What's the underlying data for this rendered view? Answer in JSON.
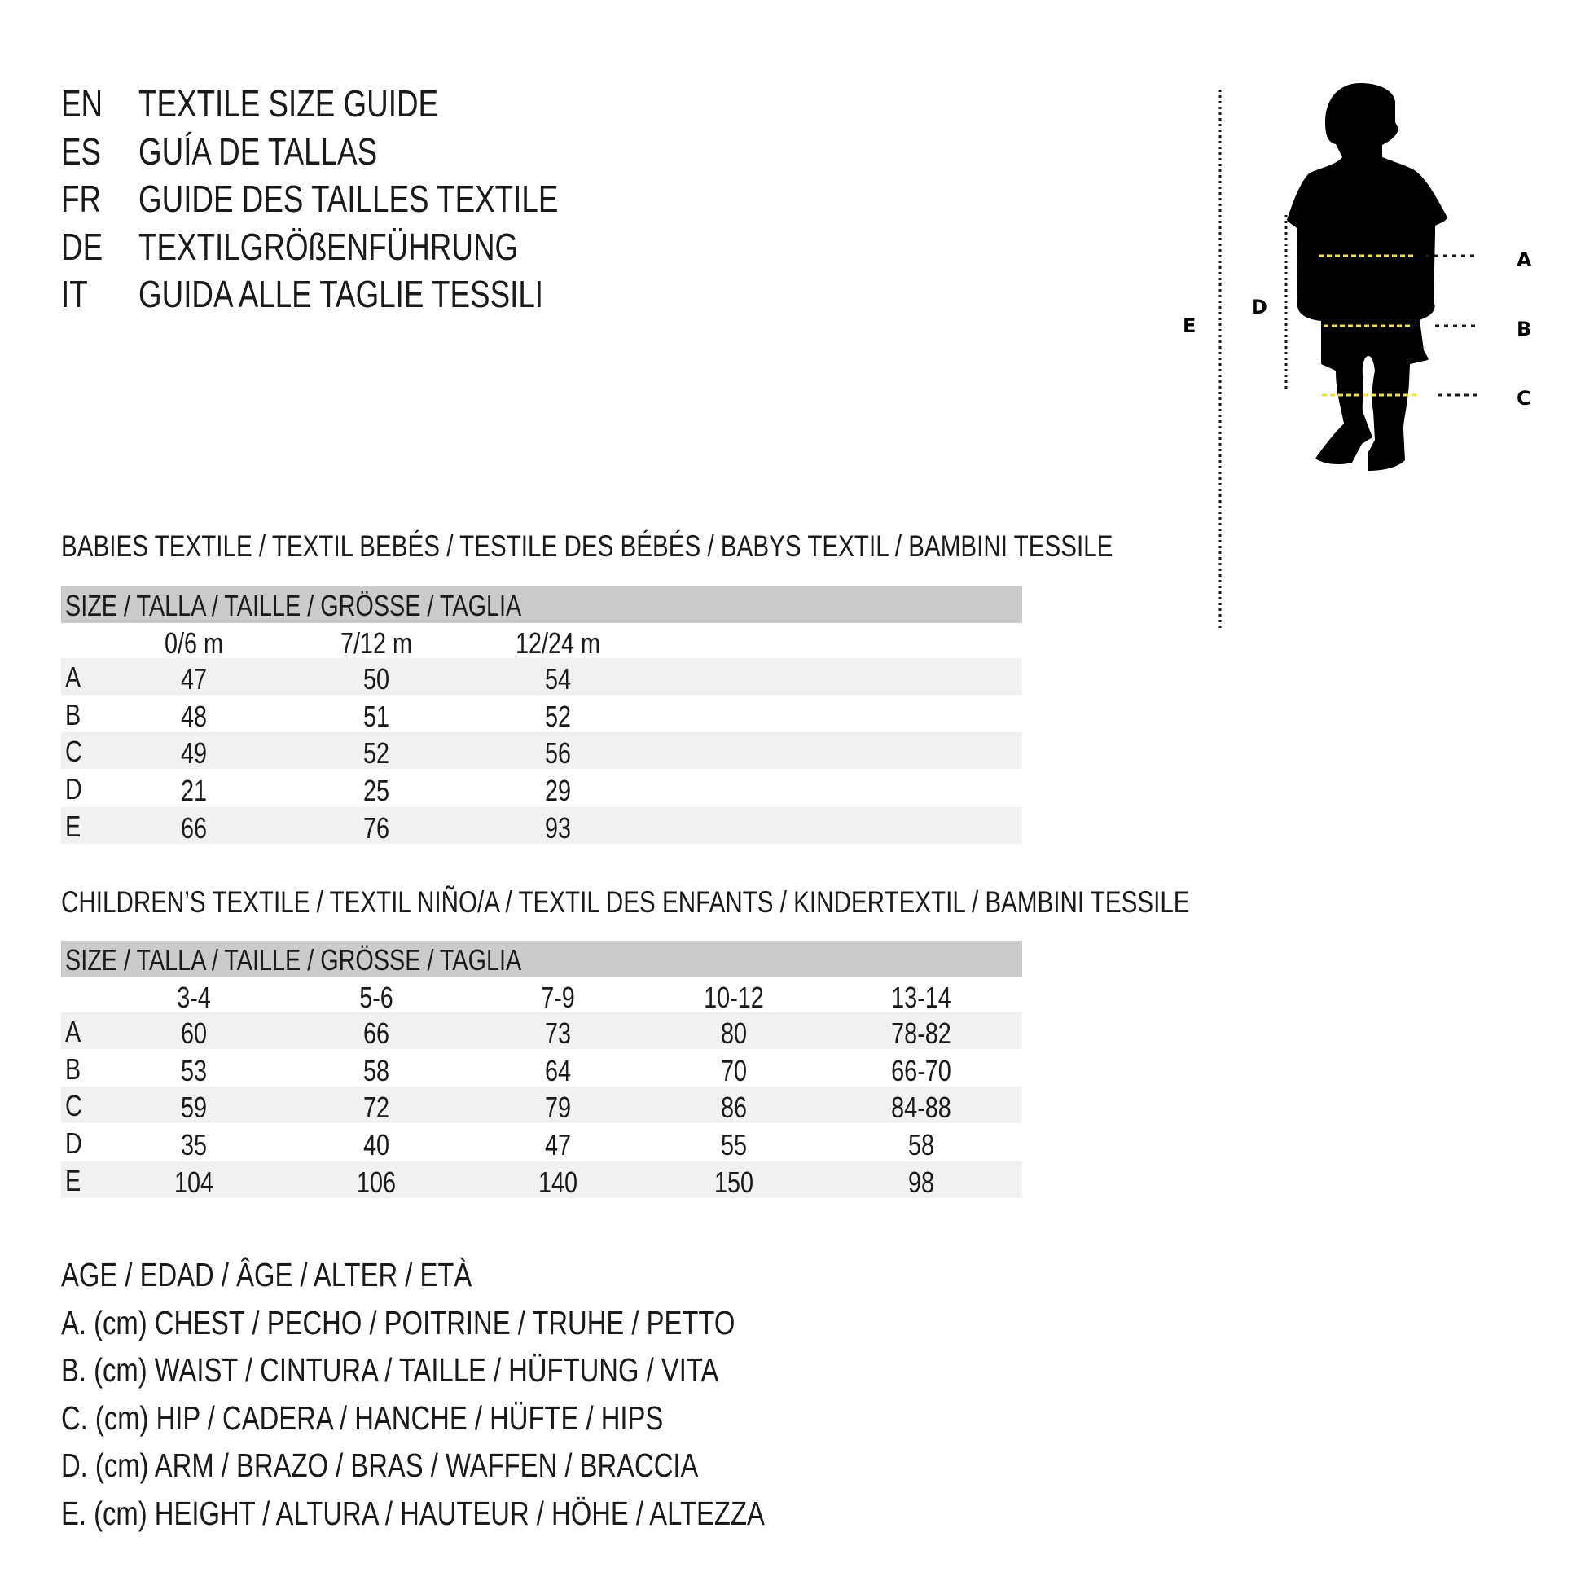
{
  "titles": [
    {
      "code": "EN",
      "text": "TEXTILE SIZE GUIDE"
    },
    {
      "code": "ES",
      "text": "GUÍA DE TALLAS"
    },
    {
      "code": "FR",
      "text": "GUIDE DES TAILLES TEXTILE"
    },
    {
      "code": "DE",
      "text": "TEXTILGRÖßENFÜHRUNG"
    },
    {
      "code": "IT",
      "text": "GUIDA ALLE TAGLIE TESSILI"
    }
  ],
  "babies": {
    "heading": "BABIES TEXTILE / TEXTIL BEBÉS / TESTILE DES BÉBÉS / BABYS TEXTIL / BAMBINI TESSILE",
    "size_header": "SIZE / TALLA / TAILLE / GRÖSSE / TAGLIA",
    "columns": [
      "0/6 m",
      "7/12 m",
      "12/24 m"
    ],
    "rows": [
      {
        "label": "A",
        "values": [
          "47",
          "50",
          "54"
        ]
      },
      {
        "label": "B",
        "values": [
          "48",
          "51",
          "52"
        ]
      },
      {
        "label": "C",
        "values": [
          "49",
          "52",
          "56"
        ]
      },
      {
        "label": "D",
        "values": [
          "21",
          "25",
          "29"
        ]
      },
      {
        "label": "E",
        "values": [
          "66",
          "76",
          "93"
        ]
      }
    ]
  },
  "children": {
    "heading": "CHILDREN’S TEXTILE / TEXTIL NIÑO/A / TEXTIL DES ENFANTS / KINDERTEXTIL / BAMBINI TESSILE",
    "size_header": "SIZE / TALLA / TAILLE / GRÖSSE / TAGLIA",
    "columns": [
      "3-4",
      "5-6",
      "7-9",
      "10-12",
      "13-14"
    ],
    "rows": [
      {
        "label": "A",
        "values": [
          "60",
          "66",
          "73",
          "80",
          "78-82"
        ]
      },
      {
        "label": "B",
        "values": [
          "53",
          "58",
          "64",
          "70",
          "66-70"
        ]
      },
      {
        "label": "C",
        "values": [
          "59",
          "72",
          "79",
          "86",
          "84-88"
        ]
      },
      {
        "label": "D",
        "values": [
          "35",
          "40",
          "47",
          "55",
          "58"
        ]
      },
      {
        "label": "E",
        "values": [
          "104",
          "106",
          "140",
          "150",
          "98"
        ]
      }
    ]
  },
  "legend": [
    "AGE / EDAD / ÂGE / ALTER / ETÀ",
    "A. (cm) CHEST / PECHO / POITRINE / TRUHE / PETTO",
    "B. (cm) WAIST / CINTURA / TAILLE / HÜFTUNG / VITA",
    "C. (cm) HIP / CADERA / HANCHE / HÜFTE / HIPS",
    "D. (cm) ARM / BRAZO / BRAS / WAFFEN / BRACCIA",
    "E. (cm) HEIGHT / ALTURA / HAUTEUR / HÖHE / ALTEZZA"
  ],
  "figure": {
    "labels": {
      "A": "A",
      "B": "B",
      "C": "C",
      "D": "D",
      "E": "E"
    },
    "colors": {
      "silhouette": "#000000",
      "measure_line": "#f2e03a",
      "guide_line": "#1a1a1a"
    }
  }
}
